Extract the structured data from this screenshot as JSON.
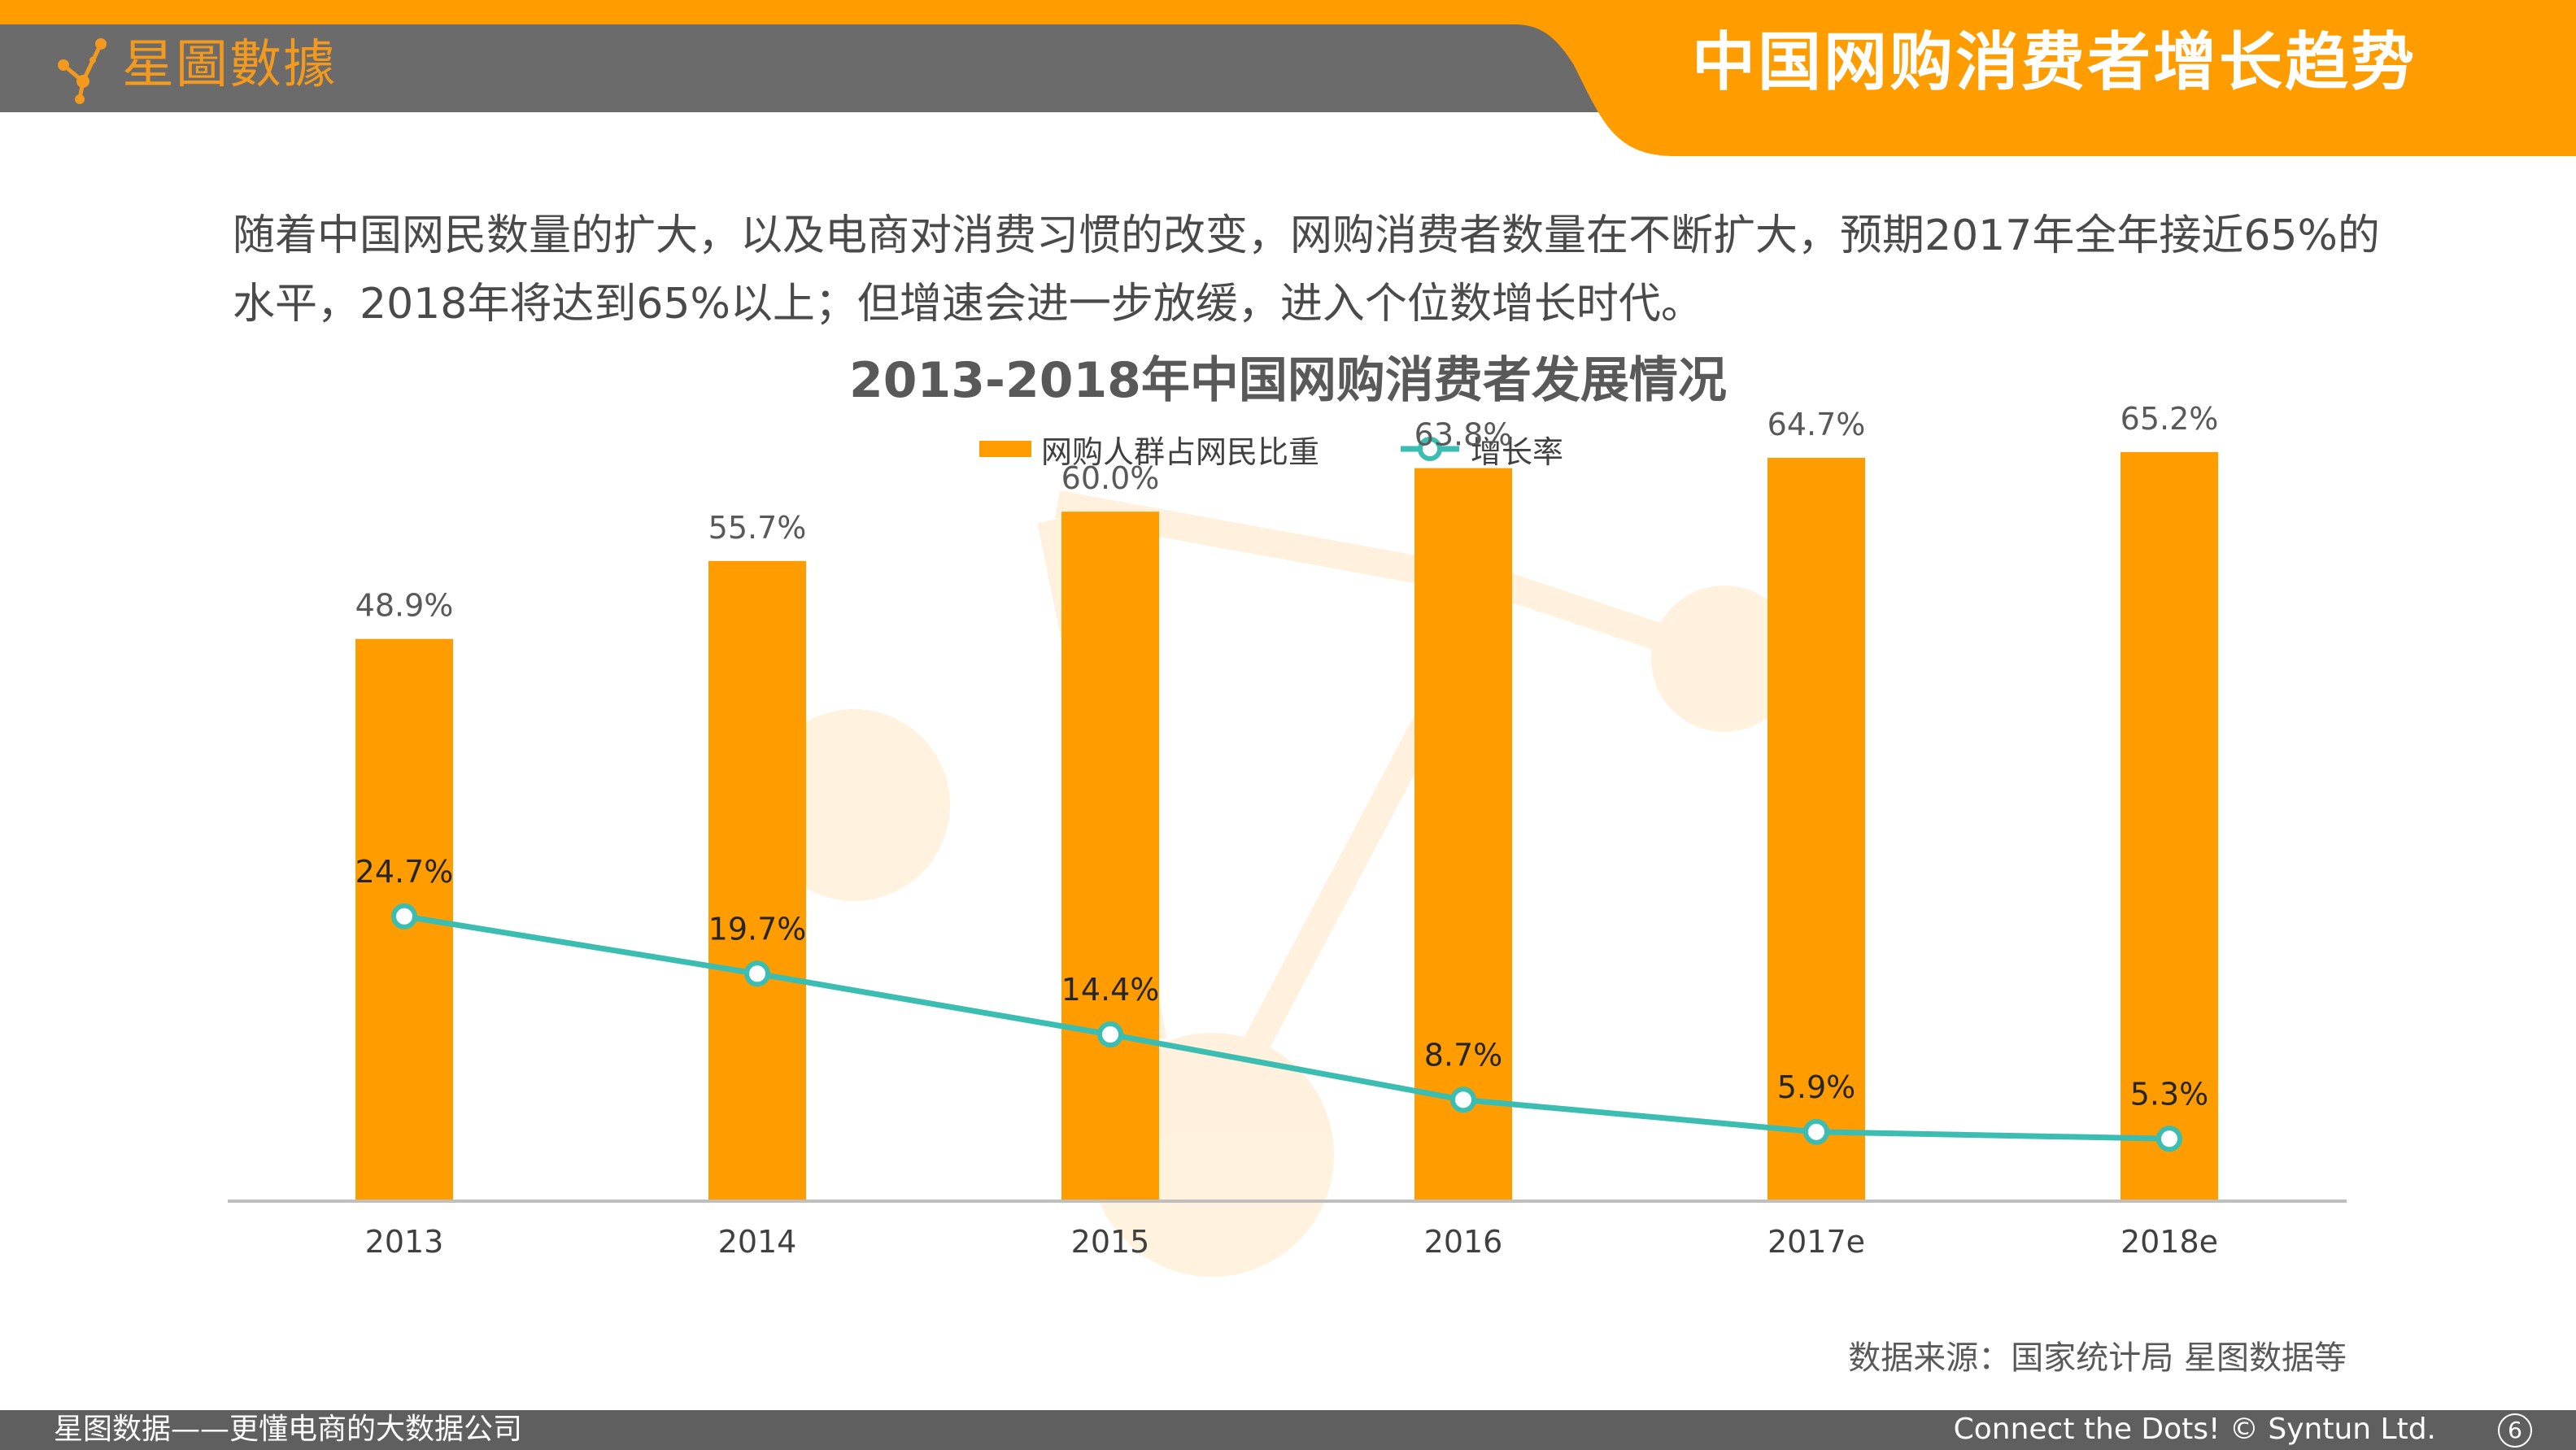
{
  "header": {
    "logo_text": "星圖數據",
    "title": "中国网购消费者增长趋势"
  },
  "intro_text": "随着中国网民数量的扩大，以及电商对消费习惯的改变，网购消费者数量在不断扩大，预期2017年全年接近65%的水平，2018年将达到65%以上；但增速会进一步放缓，进入个位数增长时代。",
  "colors": {
    "accent": "#ff9c00",
    "line": "#3cbdb2",
    "header_gray": "#6b6b6b"
  },
  "chart_data": {
    "type": "bar",
    "title": "2013-2018年中国网购消费者发展情况",
    "categories": [
      "2013",
      "2014",
      "2015",
      "2016",
      "2017e",
      "2018e"
    ],
    "series": [
      {
        "name": "网购人群占网民比重",
        "type": "bar",
        "values": [
          48.9,
          55.7,
          60.0,
          63.8,
          64.7,
          65.2
        ],
        "labels": [
          "48.9%",
          "55.7%",
          "60.0%",
          "63.8%",
          "64.7%",
          "65.2%"
        ]
      },
      {
        "name": "增长率",
        "type": "line",
        "values": [
          24.7,
          19.7,
          14.4,
          8.7,
          5.9,
          5.3
        ],
        "labels": [
          "24.7%",
          "19.7%",
          "14.4%",
          "8.7%",
          "5.9%",
          "5.3%"
        ]
      }
    ],
    "ylim": [
      0,
      72
    ],
    "legend_position": "top-center",
    "grid": false
  },
  "source": "数据来源：国家统计局  星图数据等",
  "footer": {
    "left": "星图数据——更懂电商的大数据公司",
    "right": "Connect the Dots! © Syntun Ltd.",
    "page": "6"
  }
}
